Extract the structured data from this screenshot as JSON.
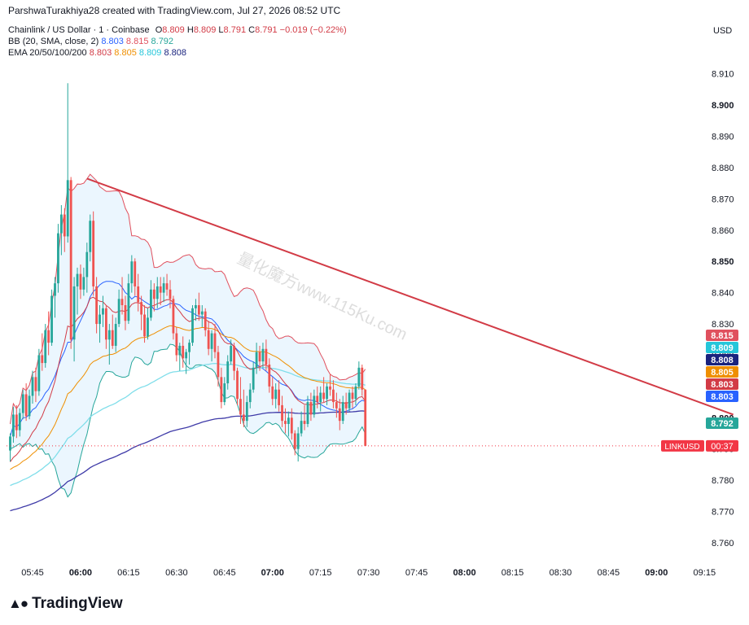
{
  "credit": "ParshwaTurakhiya28 created with TradingView.com, Jul 27, 2026 08:52 UTC",
  "currency": "USD",
  "brand": {
    "name": "TradingView",
    "logo": "tv-logo"
  },
  "legend": {
    "symbol": "Chainlink / US Dollar · 1 · Coinbase",
    "ohlc": {
      "o_label": "O",
      "o": "8.809",
      "h_label": "H",
      "h": "8.809",
      "l_label": "L",
      "l": "8.791",
      "c_label": "C",
      "c": "8.791",
      "change": "−0.019 (−0.22%)"
    },
    "bb": {
      "label": "BB (20, SMA, close, 2)",
      "basis": "8.803",
      "upper": "8.815",
      "lower": "8.792"
    },
    "ema": {
      "label": "EMA 20/50/100/200",
      "e20": "8.803",
      "e50": "8.805",
      "e100": "8.809",
      "e200": "8.808"
    }
  },
  "watermark": "量化魔方www.115Ku.com",
  "price_tags": [
    {
      "value": "8.815",
      "color": "#e0505e"
    },
    {
      "value": "8.809",
      "color": "#26c6da"
    },
    {
      "value": "8.808",
      "color": "#1a237e"
    },
    {
      "value": "8.805",
      "color": "#ef8f00"
    },
    {
      "value": "8.803",
      "color": "#d23b46"
    },
    {
      "value": "8.803",
      "color": "#2962ff"
    },
    {
      "value": "8.792",
      "color": "#26a69a"
    }
  ],
  "last_price_tag": {
    "symbol": "LINKUSD",
    "countdown": "00:37",
    "color": "#f23645"
  },
  "chart_data": {
    "type": "candlestick",
    "title": "Chainlink / US Dollar · 1 · Coinbase",
    "ylim": [
      8.754,
      8.918
    ],
    "y_ticks": [
      "8.760",
      "8.770",
      "8.780",
      "8.790",
      "8.800",
      "8.810",
      "8.820",
      "8.830",
      "8.840",
      "8.850",
      "8.860",
      "8.870",
      "8.880",
      "8.890",
      "8.900",
      "8.910"
    ],
    "y_ticks_bold": [
      "8.800",
      "8.850",
      "8.900"
    ],
    "x_ticks": [
      {
        "t": "05:45",
        "bold": false
      },
      {
        "t": "06:00",
        "bold": true
      },
      {
        "t": "06:15",
        "bold": false
      },
      {
        "t": "06:30",
        "bold": false
      },
      {
        "t": "06:45",
        "bold": false
      },
      {
        "t": "07:00",
        "bold": true
      },
      {
        "t": "07:15",
        "bold": false
      },
      {
        "t": "07:30",
        "bold": false
      },
      {
        "t": "07:45",
        "bold": false
      },
      {
        "t": "08:00",
        "bold": true
      },
      {
        "t": "08:15",
        "bold": false
      },
      {
        "t": "08:30",
        "bold": false
      },
      {
        "t": "08:45",
        "bold": false
      },
      {
        "t": "09:00",
        "bold": true
      },
      {
        "t": "09:15",
        "bold": false
      }
    ],
    "x_start": "05:38",
    "colors": {
      "up": "#26a69a",
      "down": "#ef5350",
      "bb_basis": "#2962ff",
      "bb_upper": "#e0505e",
      "bb_lower": "#26a69a",
      "bb_fill": "#e3f2fd",
      "ema20": "#d23b46",
      "ema50": "#ef8f00",
      "ema100": "#80deea",
      "ema200": "#3f3ba8",
      "trendline": "#d23b46"
    },
    "trendline": {
      "from": {
        "t": "06:02",
        "price": 8.8765
      },
      "to": {
        "t": "09:24",
        "price": 8.801
      }
    },
    "last_close": 8.791,
    "candles": [
      [
        8.7895,
        8.795,
        8.786,
        8.794
      ],
      [
        8.794,
        8.8035,
        8.792,
        8.801
      ],
      [
        8.801,
        8.804,
        8.7935,
        8.796
      ],
      [
        8.796,
        8.803,
        8.794,
        8.8015
      ],
      [
        8.8015,
        8.809,
        8.7995,
        8.8075
      ],
      [
        8.8075,
        8.811,
        8.799,
        8.8005
      ],
      [
        8.8005,
        8.809,
        8.7995,
        8.807
      ],
      [
        8.807,
        8.815,
        8.8045,
        8.813
      ],
      [
        8.813,
        8.816,
        8.805,
        8.8085
      ],
      [
        8.8085,
        8.822,
        8.807,
        8.82
      ],
      [
        8.82,
        8.827,
        8.815,
        8.8175
      ],
      [
        8.8175,
        8.83,
        8.816,
        8.828
      ],
      [
        8.828,
        8.834,
        8.82,
        8.824
      ],
      [
        8.824,
        8.841,
        8.823,
        8.839
      ],
      [
        8.839,
        8.845,
        8.832,
        8.843
      ],
      [
        8.843,
        8.862,
        8.84,
        8.859
      ],
      [
        8.859,
        8.868,
        8.852,
        8.865
      ],
      [
        8.865,
        8.867,
        8.853,
        8.858
      ],
      [
        8.858,
        8.907,
        8.856,
        8.876
      ],
      [
        8.876,
        8.877,
        8.822,
        8.825
      ],
      [
        8.825,
        8.845,
        8.818,
        8.842
      ],
      [
        8.842,
        8.848,
        8.833,
        8.846
      ],
      [
        8.846,
        8.849,
        8.838,
        8.841
      ],
      [
        8.841,
        8.848,
        8.839,
        8.845
      ],
      [
        8.845,
        8.856,
        8.84,
        8.853
      ],
      [
        8.853,
        8.865,
        8.85,
        8.863
      ],
      [
        8.863,
        8.866,
        8.839,
        8.842
      ],
      [
        8.842,
        8.845,
        8.827,
        8.83
      ],
      [
        8.83,
        8.836,
        8.824,
        8.833
      ],
      [
        8.833,
        8.839,
        8.829,
        8.835
      ],
      [
        8.835,
        8.836,
        8.822,
        8.825
      ],
      [
        8.825,
        8.83,
        8.817,
        8.828
      ],
      [
        8.828,
        8.833,
        8.822,
        8.823
      ],
      [
        8.823,
        8.832,
        8.821,
        8.83
      ],
      [
        8.83,
        8.841,
        8.829,
        8.838
      ],
      [
        8.838,
        8.845,
        8.833,
        8.836
      ],
      [
        8.836,
        8.839,
        8.828,
        8.831
      ],
      [
        8.831,
        8.846,
        8.83,
        8.843
      ],
      [
        8.843,
        8.852,
        8.84,
        8.85
      ],
      [
        8.85,
        8.851,
        8.839,
        8.842
      ],
      [
        8.842,
        8.846,
        8.834,
        8.837
      ],
      [
        8.837,
        8.839,
        8.828,
        8.833
      ],
      [
        8.833,
        8.836,
        8.824,
        8.826
      ],
      [
        8.826,
        8.835,
        8.825,
        8.832
      ],
      [
        8.832,
        8.844,
        8.831,
        8.841
      ],
      [
        8.841,
        8.843,
        8.834,
        8.838
      ],
      [
        8.838,
        8.845,
        8.835,
        8.842
      ],
      [
        8.842,
        8.845,
        8.836,
        8.84
      ],
      [
        8.84,
        8.845,
        8.837,
        8.843
      ],
      [
        8.843,
        8.846,
        8.839,
        8.841
      ],
      [
        8.841,
        8.844,
        8.835,
        8.838
      ],
      [
        8.838,
        8.839,
        8.825,
        8.827
      ],
      [
        8.827,
        8.829,
        8.818,
        8.82
      ],
      [
        8.82,
        8.824,
        8.815,
        8.823
      ],
      [
        8.823,
        8.826,
        8.816,
        8.819
      ],
      [
        8.819,
        8.822,
        8.814,
        8.821
      ],
      [
        8.821,
        8.825,
        8.817,
        8.824
      ],
      [
        8.824,
        8.836,
        8.823,
        8.835
      ],
      [
        8.835,
        8.838,
        8.831,
        8.836
      ],
      [
        8.836,
        8.84,
        8.831,
        8.833
      ],
      [
        8.833,
        8.836,
        8.829,
        8.834
      ],
      [
        8.834,
        8.835,
        8.826,
        8.828
      ],
      [
        8.828,
        8.831,
        8.82,
        8.822
      ],
      [
        8.822,
        8.828,
        8.818,
        8.827
      ],
      [
        8.827,
        8.83,
        8.819,
        8.821
      ],
      [
        8.821,
        8.823,
        8.81,
        8.813
      ],
      [
        8.813,
        8.816,
        8.803,
        8.805
      ],
      [
        8.805,
        8.813,
        8.804,
        8.811
      ],
      [
        8.811,
        8.82,
        8.809,
        8.818
      ],
      [
        8.818,
        8.825,
        8.817,
        8.823
      ],
      [
        8.823,
        8.824,
        8.812,
        8.815
      ],
      [
        8.815,
        8.816,
        8.804,
        8.806
      ],
      [
        8.806,
        8.813,
        8.798,
        8.801
      ],
      [
        8.801,
        8.809,
        8.797,
        8.799
      ],
      [
        8.799,
        8.807,
        8.797,
        8.805
      ],
      [
        8.805,
        8.811,
        8.803,
        8.809
      ],
      [
        8.809,
        8.818,
        8.808,
        8.816
      ],
      [
        8.816,
        8.824,
        8.814,
        8.821
      ],
      [
        8.821,
        8.823,
        8.815,
        8.818
      ],
      [
        8.818,
        8.824,
        8.816,
        8.822
      ],
      [
        8.822,
        8.825,
        8.815,
        8.817
      ],
      [
        8.817,
        8.819,
        8.808,
        8.81
      ],
      [
        8.81,
        8.813,
        8.804,
        8.806
      ],
      [
        8.806,
        8.811,
        8.803,
        8.809
      ],
      [
        8.809,
        8.812,
        8.802,
        8.804
      ],
      [
        8.804,
        8.807,
        8.797,
        8.799
      ],
      [
        8.799,
        8.803,
        8.795,
        8.798
      ],
      [
        8.798,
        8.802,
        8.794,
        8.8
      ],
      [
        8.8,
        8.803,
        8.793,
        8.795
      ],
      [
        8.795,
        8.796,
        8.788,
        8.79
      ],
      [
        8.79,
        8.797,
        8.786,
        8.795
      ],
      [
        8.795,
        8.802,
        8.794,
        8.799
      ],
      [
        8.799,
        8.804,
        8.796,
        8.798
      ],
      [
        8.798,
        8.807,
        8.797,
        8.805
      ],
      [
        8.805,
        8.808,
        8.799,
        8.801
      ],
      [
        8.801,
        8.809,
        8.8,
        8.807
      ],
      [
        8.807,
        8.81,
        8.803,
        8.805
      ],
      [
        8.805,
        8.81,
        8.802,
        8.808
      ],
      [
        8.808,
        8.813,
        8.805,
        8.806
      ],
      [
        8.806,
        8.811,
        8.804,
        8.81
      ],
      [
        8.81,
        8.814,
        8.807,
        8.809
      ],
      [
        8.809,
        8.812,
        8.803,
        8.805
      ],
      [
        8.805,
        8.808,
        8.8,
        8.803
      ],
      [
        8.803,
        8.806,
        8.796,
        8.799
      ],
      [
        8.799,
        8.807,
        8.798,
        8.805
      ],
      [
        8.805,
        8.808,
        8.801,
        8.803
      ],
      [
        8.803,
        8.809,
        8.802,
        8.808
      ],
      [
        8.808,
        8.81,
        8.803,
        8.806
      ],
      [
        8.806,
        8.811,
        8.804,
        8.81
      ],
      [
        8.81,
        8.818,
        8.809,
        8.816
      ],
      [
        8.816,
        8.817,
        8.807,
        8.809
      ],
      [
        8.809,
        8.809,
        8.791,
        8.791
      ]
    ]
  }
}
